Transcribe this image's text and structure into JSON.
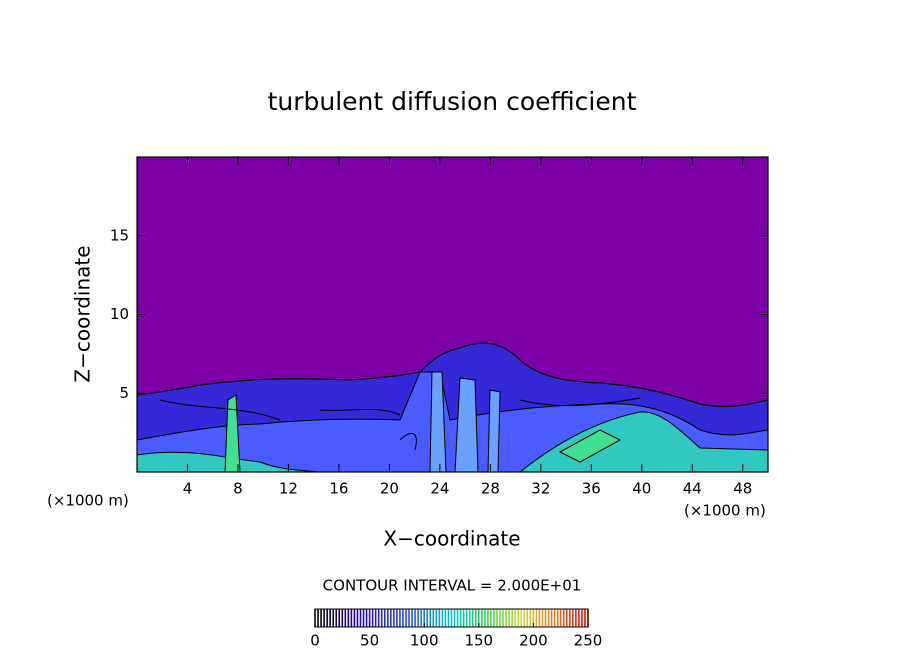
{
  "chart_data": {
    "type": "contour",
    "title": "turbulent diffusion coefficient",
    "x_label": "X−coordinate",
    "y_label": "Z−coordinate",
    "x_unit": "(×1000 m)",
    "xlim": [
      0,
      50
    ],
    "xticks": [
      4,
      8,
      12,
      16,
      20,
      24,
      28,
      32,
      36,
      40,
      44,
      48
    ],
    "ylim": [
      0,
      20
    ],
    "yticks": [
      5,
      10,
      15
    ],
    "background_color": "#7d00a6",
    "contour_interval": "CONTOUR INTERVAL = 2.000E+01",
    "colorbar": {
      "lim": [
        0,
        250
      ],
      "ticks": [
        0,
        50,
        100,
        150,
        200,
        250
      ]
    }
  }
}
